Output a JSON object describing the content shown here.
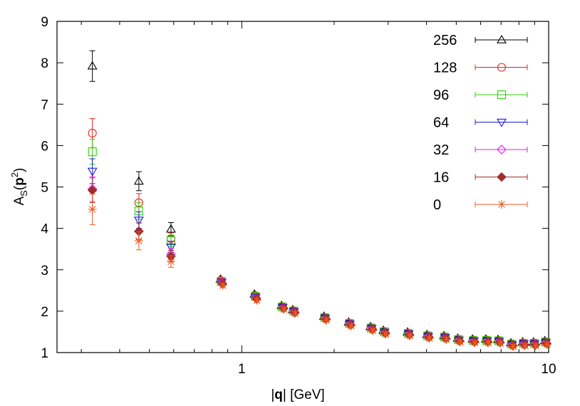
{
  "chart_data": {
    "type": "scatter",
    "xscale": "log",
    "xlim": [
      0.25,
      10
    ],
    "ylim": [
      1,
      9
    ],
    "xlabel_prefix": "|",
    "xlabel_bold": "q",
    "xlabel_suffix": "| [GeV]",
    "ylabel_main": "A",
    "ylabel_sub": "S",
    "ylabel_open": "(",
    "ylabel_bold": "p",
    "ylabel_sup": "2",
    "ylabel_close": ")",
    "xticks": [
      {
        "value": 1,
        "label": "1"
      },
      {
        "value": 10,
        "label": "10"
      }
    ],
    "yticks": [
      {
        "value": 1,
        "label": "1"
      },
      {
        "value": 2,
        "label": "2"
      },
      {
        "value": 3,
        "label": "3"
      },
      {
        "value": 4,
        "label": "4"
      },
      {
        "value": 5,
        "label": "5"
      },
      {
        "value": 6,
        "label": "6"
      },
      {
        "value": 7,
        "label": "7"
      },
      {
        "value": 8,
        "label": "8"
      },
      {
        "value": 9,
        "label": "9"
      }
    ],
    "legend_position": "top-right",
    "x_common": [
      0.86,
      1.11,
      1.36,
      1.48,
      1.87,
      2.25,
      2.65,
      2.92,
      3.5,
      4.05,
      4.6,
      5.1,
      5.7,
      6.3,
      6.9,
      7.6,
      8.3,
      9.0,
      9.8
    ],
    "y_common": [
      2.68,
      2.32,
      2.08,
      1.98,
      1.82,
      1.68,
      1.57,
      1.48,
      1.44,
      1.38,
      1.35,
      1.29,
      1.27,
      1.27,
      1.26,
      1.18,
      1.2,
      1.2,
      1.23
    ],
    "series": [
      {
        "name": "256",
        "color": "#000000",
        "marker": "triangle-up",
        "x": [
          0.326,
          0.462,
          0.588
        ],
        "y": [
          7.92,
          5.14,
          3.98
        ],
        "err": [
          0.37,
          0.23,
          0.16
        ]
      },
      {
        "name": "128",
        "color": "#e8241c",
        "marker": "circle",
        "x": [
          0.326,
          0.462,
          0.588
        ],
        "y": [
          6.3,
          4.62,
          3.75
        ],
        "err": [
          0.35,
          0.22,
          0.14
        ]
      },
      {
        "name": "96",
        "color": "#2ccf0c",
        "marker": "square",
        "x": [
          0.326,
          0.462,
          0.588
        ],
        "y": [
          5.85,
          4.42,
          3.7
        ],
        "err": [
          0.3,
          0.2,
          0.14
        ]
      },
      {
        "name": "64",
        "color": "#1b1bd6",
        "marker": "triangle-down",
        "x": [
          0.326,
          0.462,
          0.588
        ],
        "y": [
          5.38,
          4.2,
          3.55
        ],
        "err": [
          0.3,
          0.2,
          0.14
        ]
      },
      {
        "name": "32",
        "color": "#e21fe2",
        "marker": "diamond",
        "x": [
          0.326,
          0.462,
          0.588
        ],
        "y": [
          4.95,
          3.93,
          3.38
        ],
        "err": [
          0.3,
          0.2,
          0.14
        ]
      },
      {
        "name": "16",
        "color": "#a02c2c",
        "marker": "diamond-filled",
        "x": [
          0.326,
          0.462,
          0.588
        ],
        "y": [
          4.92,
          3.93,
          3.33
        ],
        "err": [
          0.3,
          0.2,
          0.14
        ]
      },
      {
        "name": "0",
        "color": "#f25a1c",
        "marker": "star",
        "x": [
          0.326,
          0.462,
          0.588
        ],
        "y": [
          4.46,
          3.7,
          3.2
        ],
        "err": [
          0.37,
          0.22,
          0.14
        ]
      }
    ]
  }
}
